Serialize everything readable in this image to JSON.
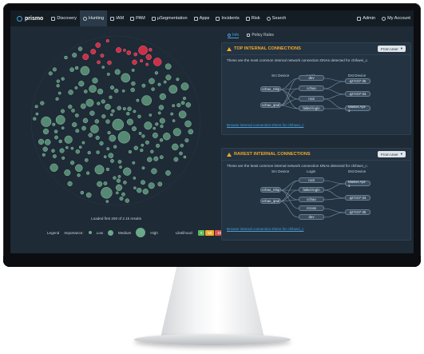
{
  "nav": {
    "logo": "prismo",
    "items": [
      {
        "label": "Discovery"
      },
      {
        "label": "Hunting"
      },
      {
        "label": "IAM"
      },
      {
        "label": "PAM"
      },
      {
        "label": "µSegmentation"
      },
      {
        "label": "Apps"
      },
      {
        "label": "Incidents"
      },
      {
        "label": "Risk"
      },
      {
        "label": "Search"
      }
    ],
    "admin": "Admin",
    "account": "My Account"
  },
  "left": {
    "loaded_text": "Loaded first 200 of 2.1k results",
    "legend_label": "Legend",
    "importance_label": "Importance:",
    "low": "Low",
    "medium": "Medium",
    "high": "High",
    "likelihood_label": "Likelihood:",
    "likelihood": [
      {
        "value": "0",
        "color": "#5cb85c"
      },
      {
        "value": "50",
        "color": "#f0a92a"
      },
      {
        "value": "100",
        "color": "#d9534f"
      }
    ]
  },
  "tabs": [
    {
      "label": "Info"
    },
    {
      "label": "Policy Rules"
    }
  ],
  "top": {
    "title": "TOP INTERNAL CONNECTIONS",
    "filter": "From User",
    "desc": "These are the most common internal network connection DNAs detected for chihwei_c.",
    "headers": {
      "src": "Src Device",
      "login": "Login",
      "dst": "Dst Device"
    },
    "src": [
      "cchao_mbp",
      "cchao_ipad"
    ],
    "login": [
      "dev",
      "cchao",
      "root",
      "failed-login"
    ],
    "dst": [
      "q27c07-35",
      "q27c07-34",
      "Master.Apt-1"
    ],
    "link": "Browse internal connection DNAs for chihwei_c"
  },
  "rare": {
    "title": "RAREST INTERNAL CONNECTIONS",
    "filter": "From User",
    "desc": "These are the least common internal network connection DNAs detected for chihwei_c.",
    "headers": {
      "src": "Src Device",
      "login": "Login",
      "dst": "Dst Device"
    },
    "src": [
      "cchao_mbp",
      "cchao_ipad"
    ],
    "login": [
      "root",
      "failed-login",
      "cchao",
      "rcross",
      "dev"
    ],
    "dst": [
      "Master.Apt-1",
      "q27c07-34",
      "q27c07-35"
    ],
    "link": "Browse internal connection DNAs for chihwei_c"
  },
  "colors": {
    "accent": "#4a9fd8",
    "warning": "#f0a92a",
    "bubble": "#6aa98a",
    "bubble_alert": "#e0304a"
  }
}
